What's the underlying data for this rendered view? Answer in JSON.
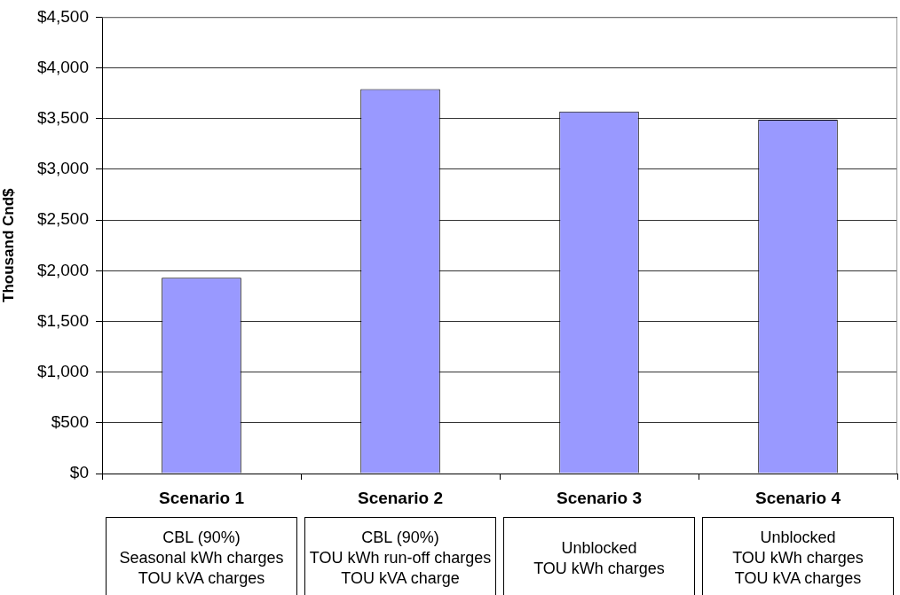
{
  "chart_data": {
    "type": "bar",
    "ylabel": "Thousand Cnd$",
    "categories": [
      "Scenario 1",
      "Scenario 2",
      "Scenario 3",
      "Scenario 4"
    ],
    "values": [
      1930,
      3790,
      3570,
      3490
    ],
    "color": "#9999ff",
    "ylim": [
      0,
      4500
    ],
    "yticks": [
      {
        "value": 0,
        "label": "$0"
      },
      {
        "value": 500,
        "label": "$500"
      },
      {
        "value": 1000,
        "label": "$1,000"
      },
      {
        "value": 1500,
        "label": "$1,500"
      },
      {
        "value": 2000,
        "label": "$2,000"
      },
      {
        "value": 2500,
        "label": "$2,500"
      },
      {
        "value": 3000,
        "label": "$3,000"
      },
      {
        "value": 3500,
        "label": "$3,500"
      },
      {
        "value": 4000,
        "label": "$4,000"
      },
      {
        "value": 4500,
        "label": "$4,500"
      }
    ],
    "grid": "y",
    "annotations": [
      "CBL (90%)\nSeasonal kWh charges\nTOU kVA charges",
      "CBL (90%)\nTOU kWh run-off charges\nTOU kVA charge",
      "Unblocked\nTOU kWh charges",
      "Unblocked\nTOU kWh charges\nTOU kVA charges"
    ]
  }
}
